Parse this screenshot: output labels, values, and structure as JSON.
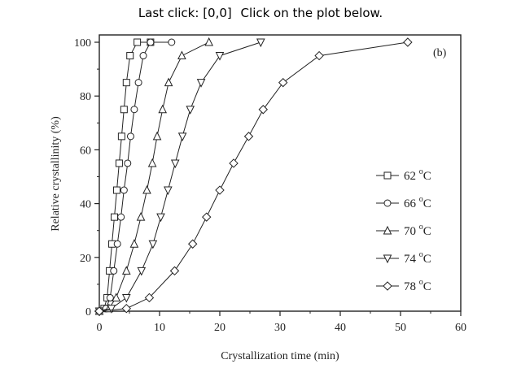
{
  "status": {
    "last_click_label": "Last click:",
    "last_click_value": "[0,0]",
    "instruction": "Click on the plot below."
  },
  "chart_data": {
    "type": "line",
    "panel_label": "(b)",
    "xlabel": "Crystallization time (min)",
    "ylabel": "Relative crystallinity (%)",
    "xlim": [
      0,
      60
    ],
    "ylim": [
      0,
      100
    ],
    "xticks": [
      0,
      10,
      20,
      30,
      40,
      50,
      60
    ],
    "yticks": [
      0,
      20,
      40,
      60,
      80,
      100
    ],
    "grid": false,
    "legend_position": "lower-right",
    "series": [
      {
        "name": "62",
        "marker": "square",
        "x": [
          0,
          0.8,
          1.3,
          1.7,
          2.1,
          2.5,
          2.9,
          3.3,
          3.7,
          4.1,
          4.5,
          5.1,
          6.3,
          8.5
        ],
        "y": [
          0,
          1,
          5,
          15,
          25,
          35,
          45,
          55,
          65,
          75,
          85,
          95,
          100,
          100
        ]
      },
      {
        "name": "66",
        "marker": "circle",
        "x": [
          0,
          1.1,
          1.8,
          2.4,
          3.0,
          3.6,
          4.1,
          4.7,
          5.2,
          5.8,
          6.5,
          7.3,
          8.5,
          12.0
        ],
        "y": [
          0,
          1,
          5,
          15,
          25,
          35,
          45,
          55,
          65,
          75,
          85,
          95,
          100,
          100
        ]
      },
      {
        "name": "70",
        "marker": "triangle",
        "x": [
          0,
          1.6,
          2.8,
          4.5,
          5.8,
          6.9,
          7.9,
          8.8,
          9.6,
          10.5,
          11.5,
          13.7,
          18.2
        ],
        "y": [
          0,
          1,
          5,
          15,
          25,
          35,
          45,
          55,
          65,
          75,
          85,
          95,
          100
        ]
      },
      {
        "name": "74",
        "marker": "triangle-down",
        "x": [
          0,
          2.0,
          4.5,
          7.0,
          8.9,
          10.2,
          11.4,
          12.6,
          13.8,
          15.1,
          16.9,
          20.0,
          26.8
        ],
        "y": [
          0,
          1,
          5,
          15,
          25,
          35,
          45,
          55,
          65,
          75,
          85,
          95,
          100
        ]
      },
      {
        "name": "78",
        "marker": "diamond",
        "x": [
          0,
          4.5,
          8.3,
          12.5,
          15.5,
          17.8,
          20.0,
          22.3,
          24.8,
          27.2,
          30.5,
          36.5,
          51.2
        ],
        "y": [
          0,
          1,
          5,
          15,
          25,
          35,
          45,
          55,
          65,
          75,
          85,
          95,
          100
        ]
      }
    ],
    "legend_unit": {
      "deg": "o",
      "unit": "C"
    }
  }
}
